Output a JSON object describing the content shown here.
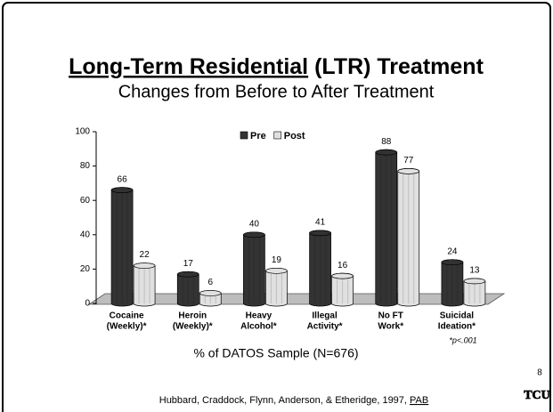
{
  "chart_data": {
    "type": "bar",
    "title_underlined": "Long-Term Residential",
    "title_rest": " (LTR) Treatment",
    "subtitle": "Changes from Before to After Treatment",
    "categories": [
      [
        "Cocaine",
        "(Weekly)*"
      ],
      [
        "Heroin",
        "(Weekly)*"
      ],
      [
        "Heavy",
        "Alcohol*"
      ],
      [
        "Illegal",
        "Activity*"
      ],
      [
        "No FT",
        "Work*"
      ],
      [
        "Suicidal",
        "Ideation*"
      ]
    ],
    "series": [
      {
        "name": "Pre",
        "color": "#333333",
        "values": [
          66,
          17,
          40,
          41,
          88,
          24
        ]
      },
      {
        "name": "Post",
        "color": "#e0e0e0",
        "values": [
          22,
          6,
          19,
          16,
          77,
          13
        ]
      }
    ],
    "ylim": [
      0,
      100
    ],
    "yticks": [
      0,
      20,
      40,
      60,
      80,
      100
    ],
    "legend": "top",
    "xlabel": "% of DATOS Sample (N=676)",
    "footnote": "*p<.001",
    "page_number": "8",
    "citation": "Hubbard, Craddock, Flynn, Anderson, & Etheridge, 1997, ",
    "citation_link": "PAB",
    "logo": "TCU"
  }
}
